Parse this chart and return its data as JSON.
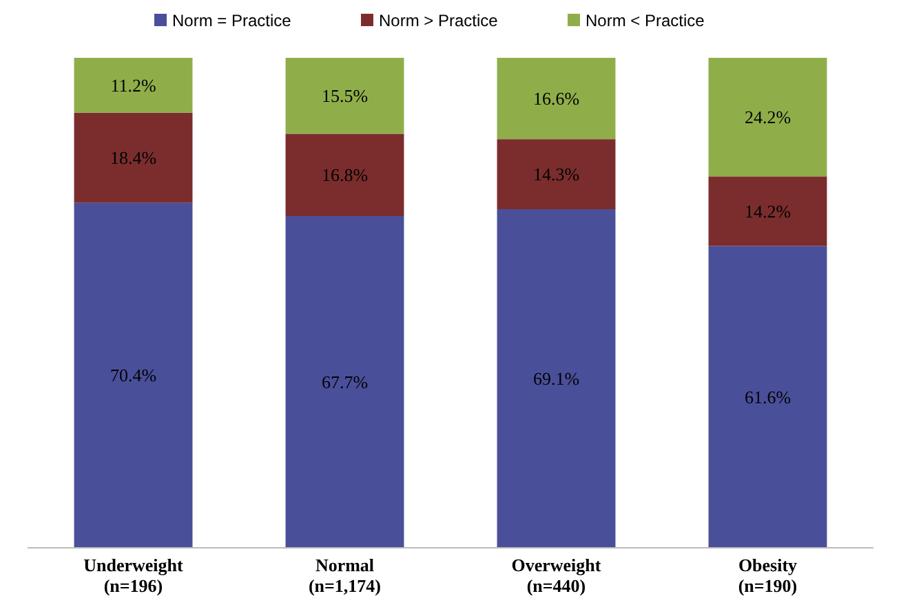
{
  "chart_data": {
    "type": "bar",
    "stacked": true,
    "legend": "top",
    "categories": [
      "Underweight\n(n=196)",
      "Normal\n(n=1,174)",
      "Overweight\n(n=440)",
      "Obesity\n(n=190)"
    ],
    "series": [
      {
        "name": "Norm = Practice",
        "color": "#4a4f9a",
        "values": [
          70.4,
          67.7,
          69.1,
          61.6
        ],
        "value_labels": [
          "70.4%",
          "67.7%",
          "69.1%",
          "61.6%"
        ]
      },
      {
        "name": "Norm > Practice",
        "color": "#7b2d2e",
        "values": [
          18.4,
          16.8,
          14.3,
          14.2
        ],
        "value_labels": [
          "18.4%",
          "16.8%",
          "14.3%",
          "14.2%"
        ]
      },
      {
        "name": "Norm < Practice",
        "color": "#8fae4a",
        "values": [
          11.2,
          15.5,
          16.6,
          24.2
        ],
        "value_labels": [
          "11.2%",
          "15.5%",
          "16.6%",
          "24.2%"
        ]
      }
    ]
  }
}
